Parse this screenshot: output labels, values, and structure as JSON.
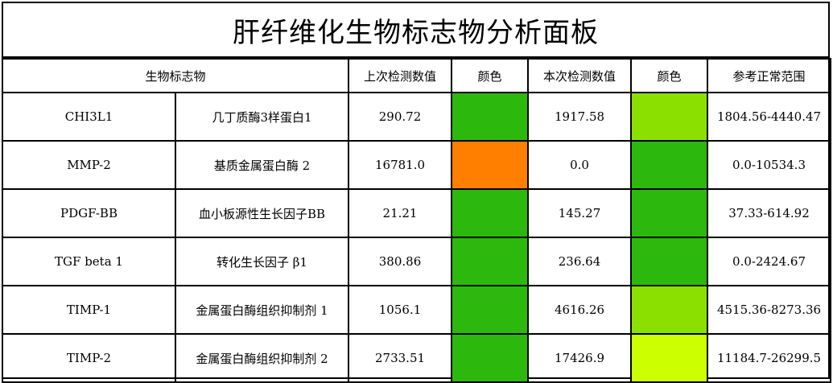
{
  "title": "肝纤维化生物标志物分析面板",
  "headers": {
    "biomarker": "生物标志物",
    "previous": "上次检测数值",
    "color1": "颜色",
    "current": "本次检测数值",
    "color2": "颜色",
    "range": "参考正常范围"
  },
  "rows": [
    {
      "code": "CHI3L1",
      "name": "几丁质酶3样蛋白1",
      "previous": "290.72",
      "prev_color": "#2db80e",
      "current": "1917.58",
      "cur_color": "#8ce000",
      "range": "1804.56-4440.47"
    },
    {
      "code": "MMP-2",
      "name": "基质金属蛋白酶 2",
      "previous": "16781.0",
      "prev_color": "#ff8000",
      "current": "0.0",
      "cur_color": "#2db80e",
      "range": "0.0-10534.3"
    },
    {
      "code": "PDGF-BB",
      "name": "血小板源性生长因子BB",
      "previous": "21.21",
      "prev_color": "#2db80e",
      "current": "145.27",
      "cur_color": "#2db80e",
      "range": "37.33-614.92"
    },
    {
      "code": "TGF beta 1",
      "name": "转化生长因子 β1",
      "previous": "380.86",
      "prev_color": "#2db80e",
      "current": "236.64",
      "cur_color": "#2db80e",
      "range": "0.0-2424.67"
    },
    {
      "code": "TIMP-1",
      "name": "金属蛋白酶组织抑制剂 1",
      "previous": "1056.1",
      "prev_color": "#2db80e",
      "current": "4616.26",
      "cur_color": "#8ce000",
      "range": "4515.36-8273.36"
    },
    {
      "code": "TIMP-2",
      "name": "金属蛋白酶组织抑制剂 2",
      "previous": "2733.51",
      "prev_color": "#2db80e",
      "current": "17426.9",
      "cur_color": "#ccff00",
      "range": "11184.7-26299.5"
    }
  ]
}
